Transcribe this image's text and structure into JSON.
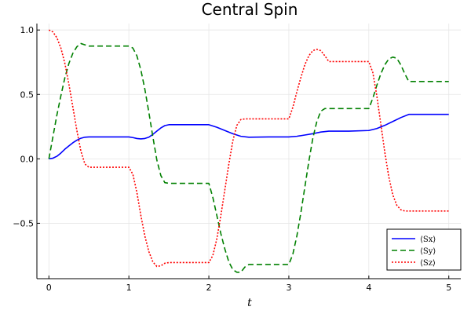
{
  "chart_data": {
    "type": "line",
    "title": "Central Spin",
    "xlabel": "t",
    "ylabel": "",
    "xlim": [
      -0.15,
      5.15
    ],
    "ylim": [
      -0.93,
      1.05
    ],
    "xticks": [
      0,
      1,
      2,
      3,
      4,
      5
    ],
    "xtick_labels": [
      "0",
      "1",
      "2",
      "3",
      "4",
      "5"
    ],
    "yticks": [
      -0.5,
      0.0,
      0.5,
      1.0
    ],
    "ytick_labels": [
      "−0.5",
      "0.0",
      "0.5",
      "1.0"
    ],
    "grid": true,
    "legend": "bottom-right",
    "series": [
      {
        "name": "⟨Sx⟩",
        "color": "#0000ff",
        "dash": "solid",
        "x": [
          0,
          0.05,
          0.1,
          0.15,
          0.2,
          0.25,
          0.3,
          0.35,
          0.4,
          0.45,
          0.5,
          0.75,
          1.0,
          1.05,
          1.1,
          1.15,
          1.2,
          1.25,
          1.3,
          1.35,
          1.4,
          1.45,
          1.5,
          1.75,
          2.0,
          2.1,
          2.2,
          2.3,
          2.4,
          2.5,
          2.75,
          3.0,
          3.1,
          3.2,
          3.3,
          3.4,
          3.5,
          3.75,
          4.0,
          4.1,
          4.2,
          4.3,
          4.4,
          4.5,
          4.75,
          5.0
        ],
        "y": [
          0,
          0.005,
          0.02,
          0.045,
          0.075,
          0.1,
          0.125,
          0.145,
          0.16,
          0.168,
          0.17,
          0.17,
          0.17,
          0.165,
          0.158,
          0.155,
          0.158,
          0.168,
          0.19,
          0.215,
          0.24,
          0.258,
          0.265,
          0.265,
          0.265,
          0.245,
          0.22,
          0.195,
          0.175,
          0.168,
          0.17,
          0.17,
          0.175,
          0.185,
          0.195,
          0.208,
          0.215,
          0.215,
          0.22,
          0.235,
          0.26,
          0.29,
          0.32,
          0.345,
          0.345,
          0.345
        ]
      },
      {
        "name": "⟨Sy⟩",
        "color": "#008000",
        "dash": "dashed",
        "x": [
          0,
          0.05,
          0.1,
          0.15,
          0.2,
          0.25,
          0.3,
          0.35,
          0.4,
          0.45,
          0.5,
          0.75,
          1.0,
          1.05,
          1.1,
          1.15,
          1.2,
          1.25,
          1.3,
          1.35,
          1.4,
          1.45,
          1.5,
          1.75,
          2.0,
          2.05,
          2.1,
          2.15,
          2.2,
          2.25,
          2.3,
          2.35,
          2.4,
          2.45,
          2.5,
          2.75,
          3.0,
          3.05,
          3.1,
          3.15,
          3.2,
          3.25,
          3.3,
          3.35,
          3.4,
          3.45,
          3.5,
          3.75,
          4.0,
          4.05,
          4.1,
          4.15,
          4.2,
          4.25,
          4.3,
          4.35,
          4.4,
          4.45,
          4.5,
          4.75,
          5.0
        ],
        "y": [
          0,
          0.17,
          0.34,
          0.49,
          0.63,
          0.74,
          0.82,
          0.87,
          0.895,
          0.885,
          0.875,
          0.875,
          0.875,
          0.86,
          0.8,
          0.69,
          0.54,
          0.36,
          0.17,
          -0.01,
          -0.13,
          -0.185,
          -0.19,
          -0.19,
          -0.19,
          -0.3,
          -0.44,
          -0.58,
          -0.7,
          -0.8,
          -0.86,
          -0.88,
          -0.88,
          -0.84,
          -0.82,
          -0.82,
          -0.82,
          -0.74,
          -0.6,
          -0.42,
          -0.22,
          -0.02,
          0.16,
          0.29,
          0.37,
          0.39,
          0.39,
          0.39,
          0.39,
          0.47,
          0.57,
          0.66,
          0.73,
          0.775,
          0.79,
          0.78,
          0.73,
          0.66,
          0.6,
          0.6,
          0.6
        ]
      },
      {
        "name": "⟨Sz⟩",
        "color": "#ff0000",
        "dash": "dotted",
        "x": [
          0,
          0.05,
          0.1,
          0.15,
          0.2,
          0.25,
          0.3,
          0.35,
          0.4,
          0.45,
          0.5,
          0.75,
          1.0,
          1.05,
          1.1,
          1.15,
          1.2,
          1.25,
          1.3,
          1.35,
          1.4,
          1.45,
          1.5,
          1.75,
          2.0,
          2.05,
          2.1,
          2.15,
          2.2,
          2.25,
          2.3,
          2.35,
          2.4,
          2.45,
          2.5,
          2.75,
          3.0,
          3.05,
          3.1,
          3.15,
          3.2,
          3.25,
          3.3,
          3.35,
          3.4,
          3.45,
          3.5,
          3.75,
          4.0,
          4.05,
          4.1,
          4.15,
          4.2,
          4.25,
          4.3,
          4.35,
          4.4,
          4.45,
          4.5,
          4.75,
          5.0
        ],
        "y": [
          1.0,
          0.985,
          0.94,
          0.86,
          0.74,
          0.58,
          0.4,
          0.22,
          0.06,
          -0.04,
          -0.065,
          -0.065,
          -0.065,
          -0.12,
          -0.26,
          -0.44,
          -0.6,
          -0.72,
          -0.8,
          -0.835,
          -0.83,
          -0.81,
          -0.805,
          -0.805,
          -0.805,
          -0.75,
          -0.62,
          -0.44,
          -0.24,
          -0.04,
          0.14,
          0.26,
          0.305,
          0.31,
          0.31,
          0.31,
          0.31,
          0.4,
          0.52,
          0.63,
          0.73,
          0.8,
          0.84,
          0.85,
          0.84,
          0.8,
          0.755,
          0.755,
          0.755,
          0.67,
          0.49,
          0.27,
          0.05,
          -0.14,
          -0.28,
          -0.36,
          -0.395,
          -0.405,
          -0.405,
          -0.405,
          -0.405
        ]
      }
    ]
  }
}
